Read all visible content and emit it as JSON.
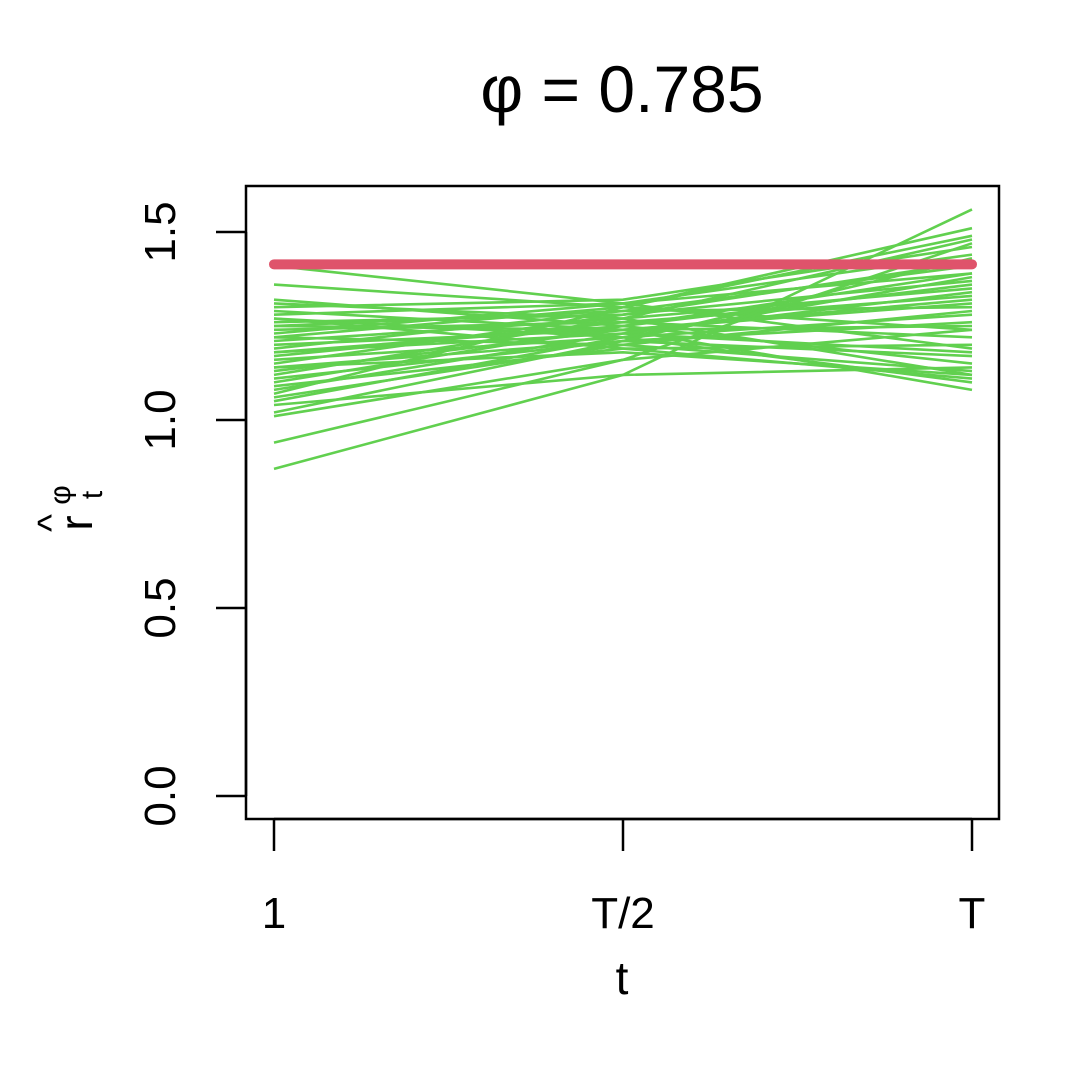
{
  "chart_data": {
    "type": "line",
    "title": "φ = 0.785",
    "xlabel": "t",
    "ylabel": {
      "main": "r",
      "hat": "^",
      "superscript": "φ",
      "subscript": "t"
    },
    "x_ticks": [
      "1",
      "T/2",
      "T"
    ],
    "y_ticks": [
      "0.0",
      "0.5",
      "1.0",
      "1.5"
    ],
    "ylim": [
      -0.06,
      1.63
    ],
    "grid": false,
    "legend": "none",
    "colors": {
      "simulations": "#61D04F",
      "reference": "#DF536B",
      "axis": "#000000"
    },
    "reference_line": {
      "value": 1.414
    },
    "simulations": [
      [
        1.41,
        1.31,
        1.19
      ],
      [
        1.36,
        1.3,
        1.24
      ],
      [
        1.32,
        1.25,
        1.15
      ],
      [
        1.31,
        1.27,
        1.12
      ],
      [
        1.3,
        1.32,
        1.46
      ],
      [
        1.29,
        1.24,
        1.08
      ],
      [
        1.28,
        1.31,
        1.39
      ],
      [
        1.27,
        1.22,
        1.1
      ],
      [
        1.26,
        1.28,
        1.37
      ],
      [
        1.25,
        1.29,
        1.3
      ],
      [
        1.24,
        1.26,
        1.22
      ],
      [
        1.23,
        1.31,
        1.44
      ],
      [
        1.22,
        1.2,
        1.13
      ],
      [
        1.21,
        1.27,
        1.35
      ],
      [
        1.2,
        1.24,
        1.25
      ],
      [
        1.19,
        1.29,
        1.41
      ],
      [
        1.18,
        1.23,
        1.18
      ],
      [
        1.17,
        1.26,
        1.33
      ],
      [
        1.16,
        1.22,
        1.28
      ],
      [
        1.15,
        1.28,
        1.42
      ],
      [
        1.14,
        1.18,
        1.12
      ],
      [
        1.13,
        1.24,
        1.31
      ],
      [
        1.12,
        1.27,
        1.48
      ],
      [
        1.11,
        1.21,
        1.26
      ],
      [
        1.1,
        1.25,
        1.36
      ],
      [
        1.09,
        1.19,
        1.2
      ],
      [
        1.08,
        1.23,
        1.34
      ],
      [
        1.07,
        1.3,
        1.51
      ],
      [
        1.06,
        1.2,
        1.29
      ],
      [
        1.05,
        1.22,
        1.38
      ],
      [
        1.04,
        1.12,
        1.14
      ],
      [
        1.02,
        1.21,
        1.43
      ],
      [
        1.01,
        1.16,
        1.24
      ],
      [
        0.94,
        1.16,
        1.47
      ],
      [
        0.87,
        1.12,
        1.56
      ],
      [
        1.27,
        1.19,
        1.11
      ],
      [
        1.22,
        1.3,
        1.49
      ],
      [
        1.18,
        1.25,
        1.39
      ],
      [
        1.14,
        1.21,
        1.17
      ],
      [
        1.25,
        1.24,
        1.32
      ]
    ]
  }
}
